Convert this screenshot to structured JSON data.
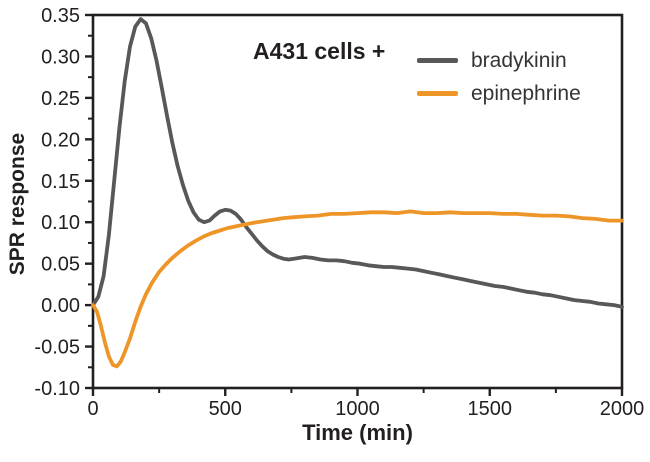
{
  "chart_data": {
    "type": "line",
    "title": "A431 cells +",
    "xlabel": "Time (min)",
    "ylabel": "SPR response",
    "xlim": [
      0,
      2000
    ],
    "ylim": [
      -0.1,
      0.35
    ],
    "x_ticks": [
      0,
      500,
      1000,
      1500,
      2000
    ],
    "x_tick_labels": [
      "0",
      "500",
      "1000",
      "1500",
      "2000"
    ],
    "x_minor_ticks": [
      250,
      750,
      1250,
      1750
    ],
    "y_ticks": [
      -0.1,
      -0.05,
      0.0,
      0.05,
      0.1,
      0.15,
      0.2,
      0.25,
      0.3,
      0.35
    ],
    "y_tick_labels": [
      "-0.10",
      "-0.05",
      "0.00",
      "0.05",
      "0.10",
      "0.15",
      "0.20",
      "0.25",
      "0.30",
      "0.35"
    ],
    "y_minor_ticks": [
      -0.075,
      -0.025,
      0.025,
      0.075,
      0.125,
      0.175,
      0.225,
      0.275,
      0.325
    ],
    "grid": false,
    "frame": true,
    "legend_position": "upper-right-inside",
    "series": [
      {
        "name": "bradykinin",
        "color": "#58585a",
        "x": [
          0,
          20,
          40,
          60,
          80,
          100,
          120,
          140,
          160,
          180,
          200,
          220,
          240,
          260,
          280,
          300,
          320,
          340,
          360,
          380,
          400,
          420,
          440,
          460,
          480,
          500,
          520,
          540,
          560,
          580,
          600,
          620,
          640,
          660,
          680,
          700,
          720,
          740,
          760,
          780,
          800,
          830,
          860,
          890,
          920,
          950,
          980,
          1010,
          1040,
          1070,
          1100,
          1130,
          1160,
          1190,
          1220,
          1250,
          1280,
          1310,
          1340,
          1370,
          1400,
          1430,
          1460,
          1490,
          1520,
          1550,
          1580,
          1610,
          1640,
          1670,
          1700,
          1730,
          1760,
          1790,
          1820,
          1850,
          1880,
          1910,
          1940,
          1970,
          2000
        ],
        "y": [
          0.0,
          0.01,
          0.035,
          0.085,
          0.15,
          0.215,
          0.27,
          0.312,
          0.336,
          0.345,
          0.34,
          0.322,
          0.295,
          0.262,
          0.228,
          0.196,
          0.168,
          0.145,
          0.126,
          0.112,
          0.103,
          0.1,
          0.102,
          0.108,
          0.113,
          0.115,
          0.114,
          0.11,
          0.103,
          0.094,
          0.086,
          0.078,
          0.071,
          0.065,
          0.061,
          0.058,
          0.056,
          0.055,
          0.056,
          0.057,
          0.058,
          0.057,
          0.055,
          0.054,
          0.054,
          0.053,
          0.051,
          0.05,
          0.048,
          0.047,
          0.046,
          0.046,
          0.045,
          0.044,
          0.043,
          0.041,
          0.039,
          0.037,
          0.035,
          0.033,
          0.031,
          0.029,
          0.027,
          0.025,
          0.023,
          0.022,
          0.02,
          0.018,
          0.016,
          0.015,
          0.013,
          0.012,
          0.01,
          0.008,
          0.006,
          0.005,
          0.004,
          0.002,
          0.001,
          0.0,
          -0.002
        ]
      },
      {
        "name": "epinephrine",
        "color": "#ee9528",
        "x": [
          0,
          15,
          30,
          45,
          60,
          75,
          90,
          105,
          120,
          140,
          160,
          180,
          200,
          225,
          250,
          275,
          300,
          330,
          360,
          390,
          420,
          450,
          480,
          510,
          540,
          570,
          600,
          640,
          680,
          720,
          760,
          800,
          850,
          900,
          950,
          1000,
          1050,
          1100,
          1150,
          1200,
          1250,
          1300,
          1350,
          1400,
          1450,
          1500,
          1550,
          1600,
          1650,
          1700,
          1750,
          1800,
          1850,
          1900,
          1950,
          2000
        ],
        "y": [
          0.0,
          -0.008,
          -0.025,
          -0.045,
          -0.062,
          -0.072,
          -0.074,
          -0.068,
          -0.057,
          -0.04,
          -0.02,
          -0.002,
          0.013,
          0.028,
          0.04,
          0.049,
          0.057,
          0.065,
          0.072,
          0.078,
          0.083,
          0.087,
          0.09,
          0.093,
          0.095,
          0.097,
          0.099,
          0.101,
          0.103,
          0.105,
          0.106,
          0.107,
          0.108,
          0.11,
          0.11,
          0.111,
          0.112,
          0.112,
          0.111,
          0.113,
          0.111,
          0.111,
          0.112,
          0.111,
          0.111,
          0.111,
          0.11,
          0.11,
          0.109,
          0.108,
          0.108,
          0.107,
          0.105,
          0.104,
          0.102,
          0.102
        ]
      }
    ]
  },
  "colors": {
    "axis": "#231f20",
    "legend_text": "#343437",
    "background": "#ffffff"
  }
}
